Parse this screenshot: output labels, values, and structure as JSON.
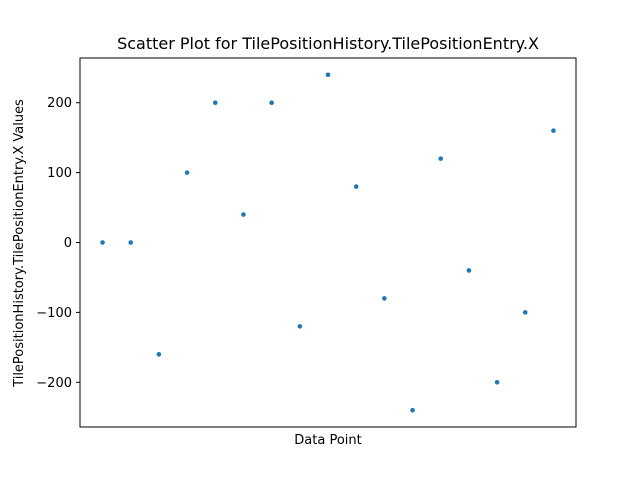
{
  "chart_data": {
    "type": "scatter",
    "title": "Scatter Plot for TilePositionHistory.TilePositionEntry.X",
    "xlabel": "Data Point",
    "ylabel": "TilePositionHistory.TilePositionEntry.X Values",
    "x": [
      0,
      1,
      2,
      3,
      4,
      5,
      6,
      7,
      8,
      9,
      10,
      11,
      12,
      13,
      14,
      15,
      16
    ],
    "y": [
      0,
      0,
      -160,
      100,
      200,
      40,
      200,
      -120,
      240,
      80,
      -80,
      -240,
      120,
      -40,
      -200,
      -100,
      160
    ],
    "y_ticks": [
      -200,
      -100,
      0,
      100,
      200
    ],
    "y_tick_labels": [
      "−200",
      "−100",
      "0",
      "100",
      "200"
    ],
    "xlim": [
      -0.8,
      16.8
    ],
    "ylim": [
      -264,
      264
    ],
    "grid": false,
    "x_ticks_visible": false,
    "point_color": "#1f77b4"
  }
}
